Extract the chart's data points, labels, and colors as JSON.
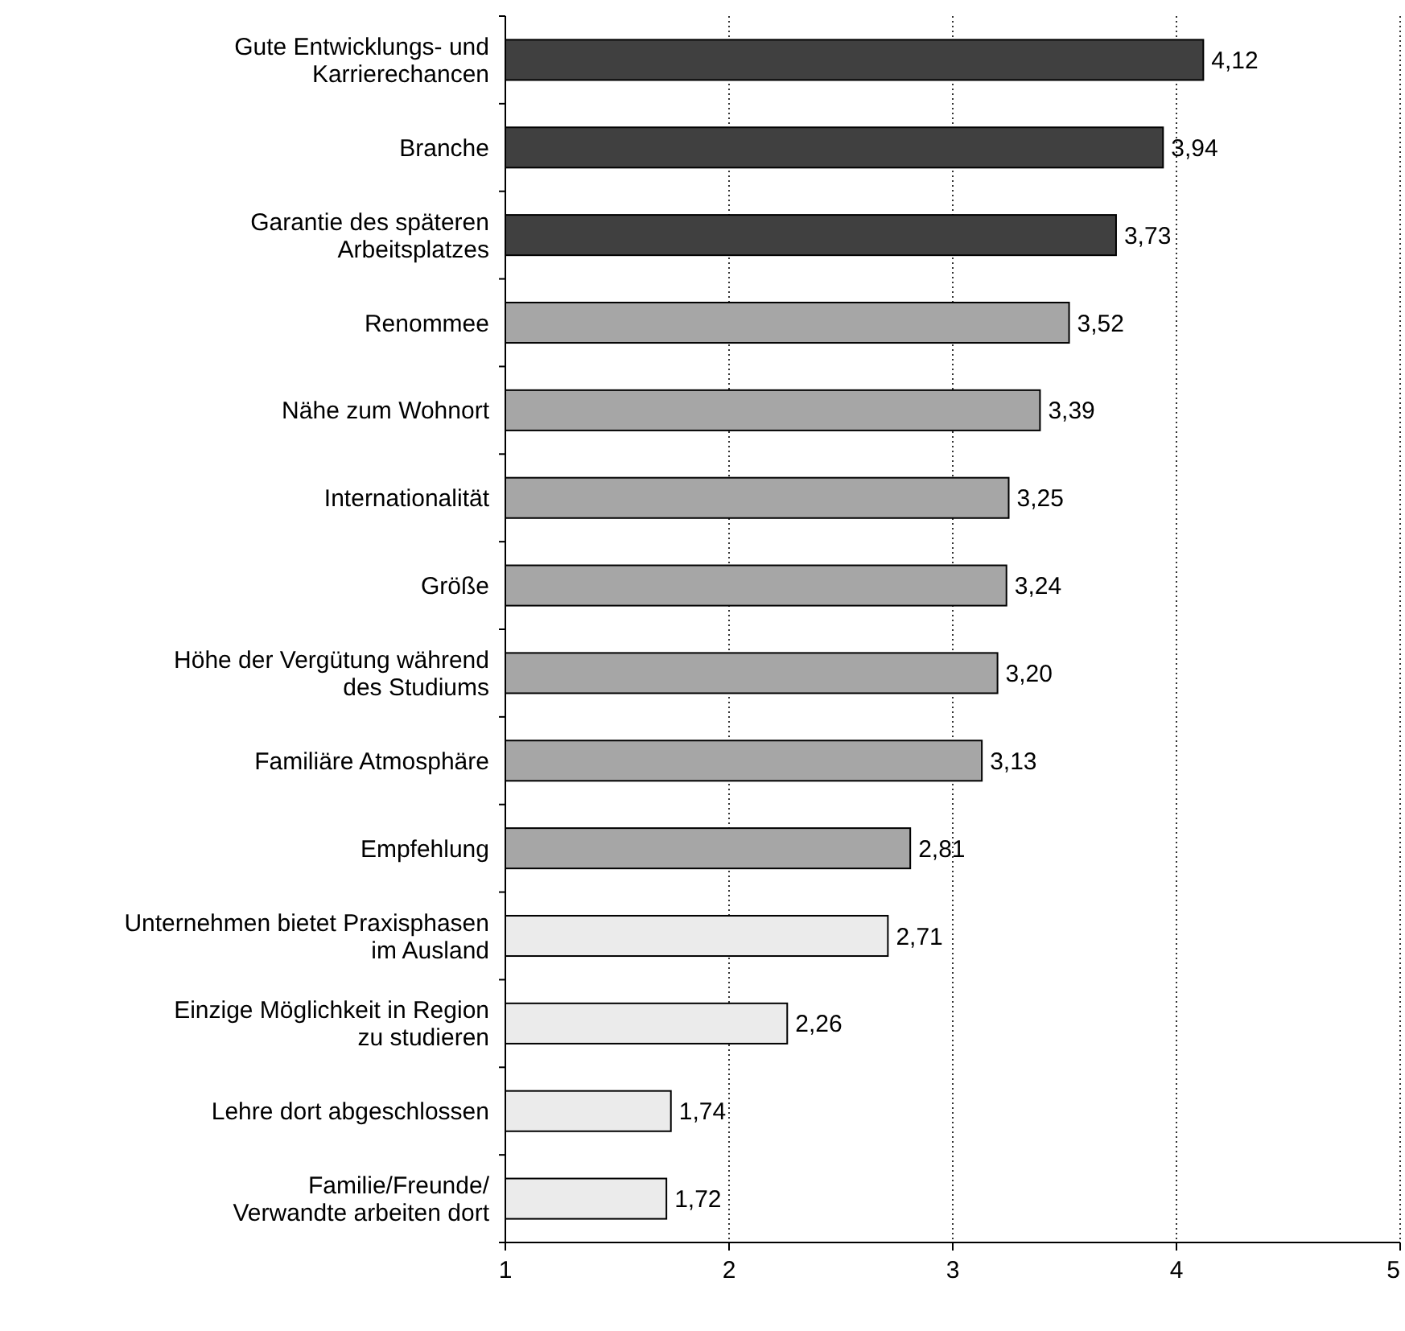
{
  "chart_data": {
    "type": "bar",
    "orientation": "horizontal",
    "categories": [
      "Gute Entwicklungs- und\nKarrierechancen",
      "Branche",
      "Garantie des späteren\nArbeitsplatzes",
      "Renommee",
      "Nähe zum Wohnort",
      "Internationalität",
      "Größe",
      "Höhe der Vergütung während\ndes Studiums",
      "Familiäre Atmosphäre",
      "Empfehlung",
      "Unternehmen bietet Praxisphasen\nim Ausland",
      "Einzige Möglichkeit in Region\nzu studieren",
      "Lehre dort abgeschlossen",
      "Familie/Freunde/\nVerwandte arbeiten dort"
    ],
    "values": [
      4.12,
      3.94,
      3.73,
      3.52,
      3.39,
      3.25,
      3.24,
      3.2,
      3.13,
      2.81,
      2.71,
      2.26,
      1.74,
      1.72
    ],
    "value_labels": [
      "4,12",
      "3,94",
      "3,73",
      "3,52",
      "3,39",
      "3,25",
      "3,24",
      "3,20",
      "3,13",
      "2,81",
      "2,71",
      "2,26",
      "1,74",
      "1,72"
    ],
    "colors": [
      "#404040",
      "#404040",
      "#404040",
      "#a6a6a6",
      "#a6a6a6",
      "#a6a6a6",
      "#a6a6a6",
      "#a6a6a6",
      "#a6a6a6",
      "#a6a6a6",
      "#ebebeb",
      "#ebebeb",
      "#ebebeb",
      "#ebebeb"
    ],
    "xlim": [
      1,
      5
    ],
    "xticks": [
      1,
      2,
      3,
      4,
      5
    ],
    "grid": "x"
  }
}
